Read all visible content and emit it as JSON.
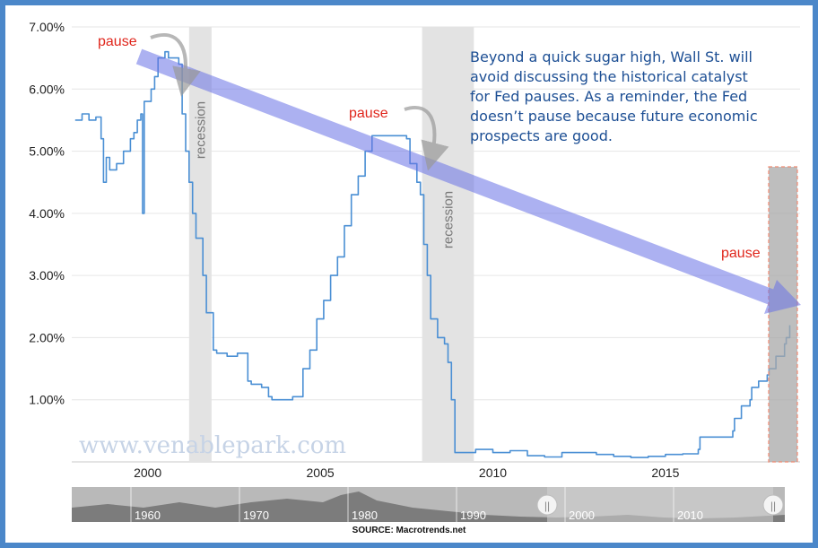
{
  "chart_data": {
    "type": "line",
    "title": "",
    "xlabel": "",
    "ylabel": "",
    "y_ticks": [
      "1.00%",
      "2.00%",
      "3.00%",
      "4.00%",
      "5.00%",
      "6.00%",
      "7.00%"
    ],
    "x_ticks": [
      "2000",
      "2005",
      "2010",
      "2015"
    ],
    "xlim": [
      1997.8,
      2018.9
    ],
    "ylim": [
      0,
      7.0
    ],
    "grid": "horizontal",
    "series": [
      {
        "name": "",
        "color": "#4a8fd4",
        "x": [
          1997.9,
          1998.1,
          1998.3,
          1998.5,
          1998.65,
          1998.72,
          1998.8,
          1998.9,
          1999.1,
          1999.3,
          1999.5,
          1999.6,
          1999.7,
          1999.8,
          1999.85,
          1999.9,
          2000.1,
          2000.2,
          2000.3,
          2000.5,
          2000.6,
          2000.8,
          2000.9,
          2001.0,
          2001.1,
          2001.2,
          2001.3,
          2001.4,
          2001.6,
          2001.7,
          2001.9,
          2002.0,
          2002.3,
          2002.6,
          2002.9,
          2003.0,
          2003.3,
          2003.5,
          2003.6,
          2003.9,
          2004.2,
          2004.5,
          2004.7,
          2004.9,
          2005.1,
          2005.3,
          2005.5,
          2005.7,
          2005.9,
          2006.1,
          2006.3,
          2006.5,
          2006.8,
          2007.0,
          2007.2,
          2007.5,
          2007.6,
          2007.8,
          2007.9,
          2008.0,
          2008.1,
          2008.2,
          2008.4,
          2008.6,
          2008.7,
          2008.8,
          2008.9,
          2009.1,
          2009.5,
          2010.0,
          2010.5,
          2011.0,
          2011.5,
          2012.0,
          2012.5,
          2013.0,
          2013.5,
          2014.0,
          2014.5,
          2015.0,
          2015.5,
          2015.95,
          2016.0,
          2016.5,
          2016.95,
          2017.0,
          2017.2,
          2017.45,
          2017.5,
          2017.7,
          2017.95,
          2018.0,
          2018.2,
          2018.45,
          2018.5,
          2018.6
        ],
        "values": [
          5.5,
          5.6,
          5.5,
          5.55,
          5.2,
          4.5,
          4.9,
          4.7,
          4.8,
          5.0,
          5.2,
          5.3,
          5.5,
          5.6,
          4.0,
          5.8,
          6.0,
          6.2,
          6.5,
          6.6,
          6.5,
          6.5,
          6.4,
          5.6,
          5.0,
          4.5,
          4.0,
          3.6,
          3.0,
          2.4,
          1.8,
          1.75,
          1.7,
          1.75,
          1.3,
          1.25,
          1.2,
          1.05,
          1.0,
          1.0,
          1.05,
          1.5,
          1.8,
          2.3,
          2.6,
          3.0,
          3.3,
          3.8,
          4.3,
          4.6,
          5.0,
          5.25,
          5.25,
          5.25,
          5.25,
          5.2,
          4.8,
          4.5,
          4.3,
          3.5,
          3.0,
          2.3,
          2.0,
          1.9,
          1.6,
          1.0,
          0.15,
          0.15,
          0.2,
          0.15,
          0.18,
          0.1,
          0.08,
          0.15,
          0.15,
          0.12,
          0.09,
          0.07,
          0.09,
          0.12,
          0.13,
          0.2,
          0.4,
          0.4,
          0.5,
          0.7,
          0.9,
          1.0,
          1.2,
          1.3,
          1.4,
          1.5,
          1.7,
          1.9,
          2.0,
          2.2
        ]
      }
    ],
    "recessions": [
      {
        "start": 2001.2,
        "end": 2001.85,
        "label": "recession"
      },
      {
        "start": 2007.95,
        "end": 2009.45,
        "label": "recession"
      }
    ],
    "pause_labels": [
      "pause",
      "pause",
      "pause"
    ],
    "annotation": "Beyond a quick sugar high, Wall St. will avoid discussing the historical catalyst for Fed pauses. As a reminder, the Fed doesn't pause because future economic prospects are good.",
    "annotation_lines": [
      "Beyond a quick sugar high, Wall St. will",
      "avoid discussing the historical catalyst",
      "for Fed pauses. As a reminder, the Fed",
      "doesn’t pause because future economic",
      "prospects are good."
    ],
    "trend_arrow_color": "#6a73e6",
    "recession_color": "#e3e3e3"
  },
  "watermark": "www.venablepark.com",
  "navigator": {
    "labels": [
      "1960",
      "1970",
      "1980",
      "1990",
      "2000",
      "2010"
    ],
    "handle_glyph": "||"
  },
  "source": "SOURCE: Macrotrends.net"
}
